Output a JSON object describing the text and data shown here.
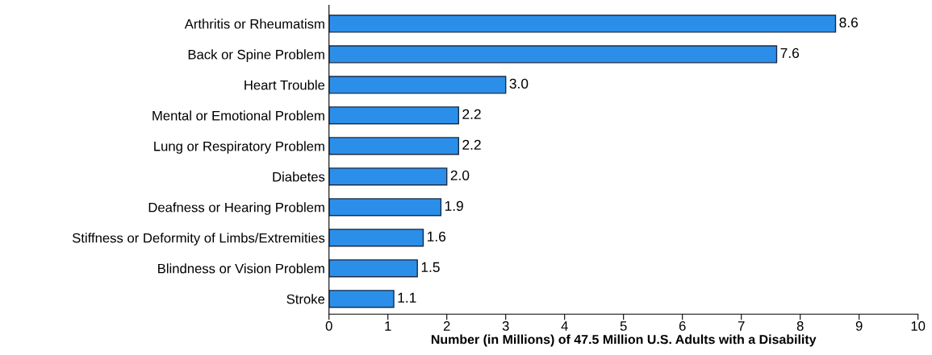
{
  "chart_data": {
    "type": "bar",
    "orientation": "horizontal",
    "xlabel": "Number (in Millions) of 47.5 Million U.S. Adults with a Disability",
    "categories": [
      "Arthritis or Rheumatism",
      "Back or Spine Problem",
      "Heart Trouble",
      "Mental or Emotional Problem",
      "Lung or Respiratory Problem",
      "Diabetes",
      "Deafness or Hearing Problem",
      "Stiffness or Deformity of Limbs/Extremities",
      "Blindness or Vision Problem",
      "Stroke"
    ],
    "values": [
      8.6,
      7.6,
      3.0,
      2.2,
      2.2,
      2.0,
      1.9,
      1.6,
      1.5,
      1.1
    ],
    "value_labels": [
      "8.6",
      "7.6",
      "3.0",
      "2.2",
      "2.2",
      "2.0",
      "1.9",
      "1.6",
      "1.5",
      "1.1"
    ],
    "color": "#2b8fea",
    "xlim": [
      0,
      10
    ],
    "xticks": [
      0,
      1,
      2,
      3,
      4,
      5,
      6,
      7,
      8,
      9,
      10
    ],
    "grid": false
  }
}
